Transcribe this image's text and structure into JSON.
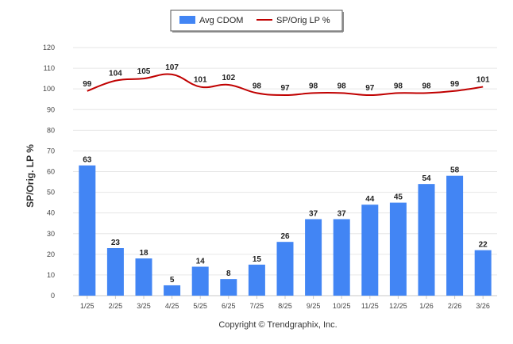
{
  "chart_data": {
    "type": "bar",
    "categories": [
      "1/25",
      "2/25",
      "3/25",
      "4/25",
      "5/25",
      "6/25",
      "7/25",
      "8/25",
      "9/25",
      "10/25",
      "11/25",
      "12/25",
      "1/26",
      "2/26",
      "3/26"
    ],
    "series": [
      {
        "name": "Avg CDOM",
        "type": "bar",
        "color": "#4285f4",
        "values": [
          63,
          23,
          18,
          5,
          14,
          8,
          15,
          26,
          37,
          37,
          44,
          45,
          54,
          58,
          22
        ]
      },
      {
        "name": "SP/Orig LP %",
        "type": "line",
        "color": "#c00000",
        "values": [
          99,
          104,
          105,
          107,
          101,
          102,
          98,
          97,
          98,
          98,
          97,
          98,
          98,
          99,
          101
        ]
      }
    ],
    "ylabel": "SP/Orig. LP %",
    "ylim": [
      0,
      120
    ],
    "yticks": [
      0,
      10,
      20,
      30,
      40,
      50,
      60,
      70,
      80,
      90,
      100,
      110,
      120
    ],
    "grid": true,
    "legend": "top-center"
  },
  "footer": {
    "copyright": "Copyright © Trendgraphix, Inc."
  }
}
